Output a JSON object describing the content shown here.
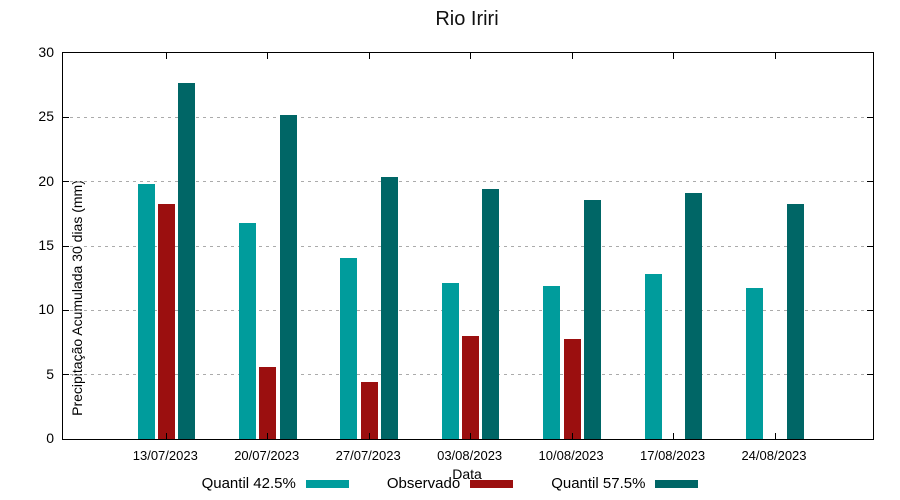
{
  "title": "Rio Iriri",
  "chart_data": {
    "type": "bar",
    "title": "Rio Iriri",
    "xlabel": "Data",
    "ylabel": "Precipitação Acumulada 30 dias (mm)",
    "categories": [
      "13/07/2023",
      "20/07/2023",
      "27/07/2023",
      "03/08/2023",
      "10/08/2023",
      "17/08/2023",
      "24/08/2023"
    ],
    "series": [
      {
        "name": "Quantil 42.5%",
        "color": "#009C9C",
        "values": [
          19.8,
          16.8,
          14.1,
          12.1,
          11.9,
          12.8,
          11.7
        ]
      },
      {
        "name": "Observado",
        "color": "#9B0F0F",
        "values": [
          18.3,
          5.6,
          4.4,
          8.0,
          7.8,
          null,
          null
        ]
      },
      {
        "name": "Quantil 57.5%",
        "color": "#006666",
        "values": [
          27.7,
          25.2,
          20.4,
          19.4,
          18.6,
          19.1,
          18.3
        ]
      }
    ],
    "ylim": [
      0,
      30
    ],
    "yticks": [
      0,
      5,
      10,
      15,
      20,
      25,
      30
    ],
    "grid": "horizontal-dotted",
    "legend_position": "bottom",
    "border_box": true
  },
  "colors": {
    "axis": "#000000",
    "grid": "#ababab",
    "background": "#ffffff",
    "text": "#000000"
  }
}
